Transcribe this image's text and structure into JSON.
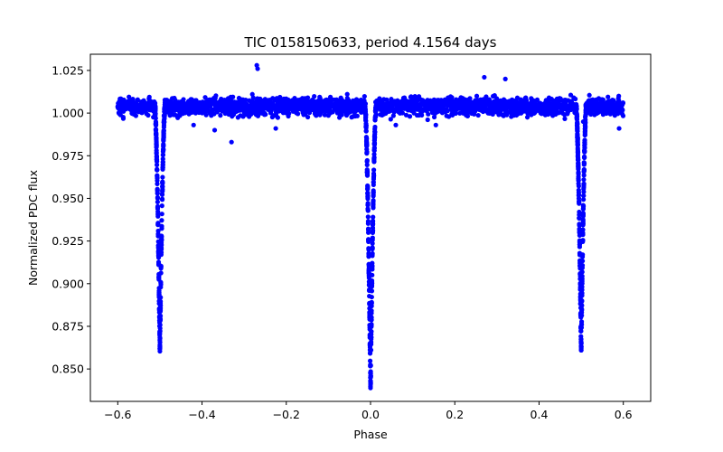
{
  "chart_data": {
    "type": "scatter",
    "title": "TIC 0158150633, period 4.1564 days",
    "xlabel": "Phase",
    "ylabel": "Normalized PDC flux",
    "xlim": [
      -0.665,
      0.665
    ],
    "ylim": [
      0.831,
      1.0345
    ],
    "x_ticks": [
      -0.6,
      -0.4,
      -0.2,
      0.0,
      0.2,
      0.4,
      0.6
    ],
    "x_tick_labels": [
      "−0.6",
      "−0.4",
      "−0.2",
      "0.0",
      "0.2",
      "0.4",
      "0.6"
    ],
    "y_ticks": [
      0.85,
      0.875,
      0.9,
      0.925,
      0.95,
      0.975,
      1.0,
      1.025
    ],
    "y_tick_labels": [
      "0.850",
      "0.875",
      "0.900",
      "0.925",
      "0.950",
      "0.975",
      "1.000",
      "1.025"
    ],
    "grid": false,
    "marker_color": "#0000ff",
    "series": [
      {
        "baseline": {
          "x_range": [
            -0.6,
            0.6
          ],
          "y_center": 1.004,
          "y_band": [
            0.996,
            1.014
          ]
        },
        "eclipses": [
          {
            "phase": -0.5,
            "min_flux": 0.861,
            "width": 0.012
          },
          {
            "phase": 0.0,
            "min_flux": 0.838,
            "width": 0.013
          },
          {
            "phase": 0.5,
            "min_flux": 0.861,
            "width": 0.012
          }
        ],
        "outliers": [
          {
            "x": -0.27,
            "y": 1.028
          },
          {
            "x": -0.268,
            "y": 1.026
          },
          {
            "x": 0.27,
            "y": 1.021
          },
          {
            "x": 0.32,
            "y": 1.02
          },
          {
            "x": -0.33,
            "y": 0.983
          },
          {
            "x": -0.225,
            "y": 0.991
          },
          {
            "x": 0.06,
            "y": 0.993
          },
          {
            "x": 0.155,
            "y": 0.993
          },
          {
            "x": 0.59,
            "y": 0.991
          },
          {
            "x": -0.37,
            "y": 0.99
          },
          {
            "x": -0.42,
            "y": 0.993
          },
          {
            "x": 0.505,
            "y": 0.995
          }
        ]
      }
    ]
  }
}
